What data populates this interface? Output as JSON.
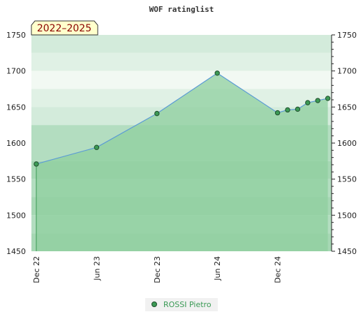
{
  "chart_data": {
    "type": "area",
    "title": "WOF ratinglist",
    "period_label": "2022–2025",
    "ylim": [
      1450,
      1750
    ],
    "y_ticks": [
      1450,
      1500,
      1550,
      1600,
      1650,
      1700,
      1750
    ],
    "x_ticks": [
      "Dec 22",
      "Jun 23",
      "Dec 23",
      "Jun 24",
      "Dec 24"
    ],
    "legend": "bottom-center",
    "grid": true,
    "colors": {
      "fill": "#8fcf9f",
      "line": "#5b9bd5",
      "marker": "#3c9a55"
    },
    "series": [
      {
        "name": "ROSSI Pietro",
        "x": [
          "Dec 22",
          "Jun 23",
          "Dec 23",
          "Jun 24",
          "Dec 24",
          "Jan 25",
          "Feb 25",
          "Mar 25",
          "Apr 25",
          "May 25"
        ],
        "values": [
          1571,
          1594,
          1641,
          1697,
          1642,
          1646,
          1647,
          1656,
          1659,
          1662
        ]
      }
    ]
  }
}
